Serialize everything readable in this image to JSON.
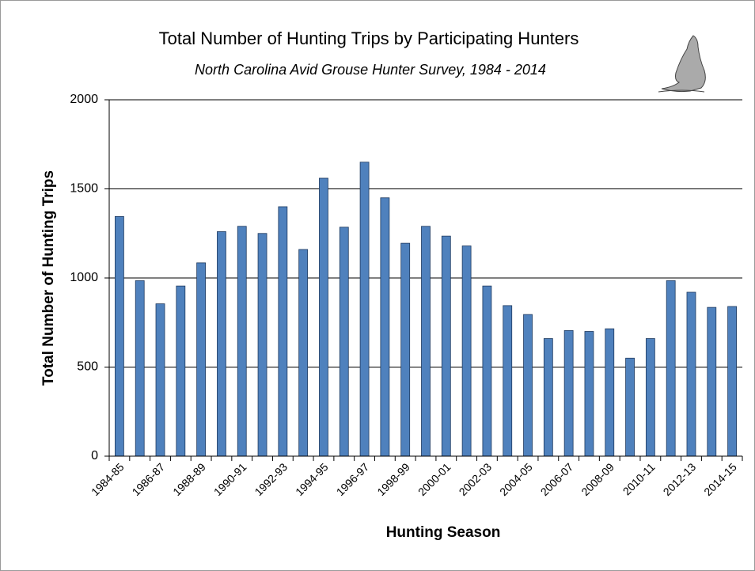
{
  "chart_data": {
    "type": "bar",
    "title": "Total Number of Hunting Trips by Participating Hunters",
    "subtitle": "North Carolina Avid Grouse Hunter Survey, 1984 - 2014",
    "x_label": "Hunting Season",
    "y_label": "Total Number of Hunting Trips",
    "categories": [
      "1984-85",
      null,
      "1986-87",
      null,
      "1988-89",
      null,
      "1990-91",
      null,
      "1992-93",
      null,
      "1994-95",
      null,
      "1996-97",
      null,
      "1998-99",
      null,
      "2000-01",
      null,
      "2002-03",
      null,
      "2004-05",
      null,
      "2006-07",
      null,
      "2008-09",
      null,
      "2010-11",
      null,
      "2012-13",
      null,
      "2014-15"
    ],
    "values": [
      1345,
      985,
      855,
      955,
      1085,
      1260,
      1290,
      1250,
      1400,
      1160,
      1560,
      1285,
      1650,
      1450,
      1195,
      1290,
      1235,
      1180,
      955,
      845,
      795,
      660,
      705,
      700,
      715,
      550,
      660,
      985,
      920,
      835,
      840
    ],
    "color": "#4f81bd",
    "ylim": [
      0,
      2000
    ],
    "yticks": [
      0,
      500,
      1000,
      1500,
      2000
    ],
    "grid": true
  }
}
